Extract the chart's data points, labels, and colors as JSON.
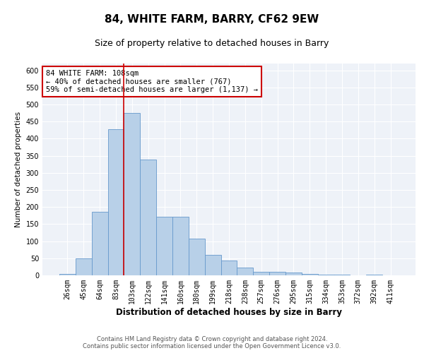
{
  "title": "84, WHITE FARM, BARRY, CF62 9EW",
  "subtitle": "Size of property relative to detached houses in Barry",
  "xlabel": "Distribution of detached houses by size in Barry",
  "ylabel": "Number of detached properties",
  "categories": [
    "26sqm",
    "45sqm",
    "64sqm",
    "83sqm",
    "103sqm",
    "122sqm",
    "141sqm",
    "160sqm",
    "180sqm",
    "199sqm",
    "218sqm",
    "238sqm",
    "257sqm",
    "276sqm",
    "295sqm",
    "315sqm",
    "334sqm",
    "353sqm",
    "372sqm",
    "392sqm",
    "411sqm"
  ],
  "values": [
    5,
    50,
    185,
    428,
    475,
    338,
    172,
    172,
    107,
    60,
    43,
    22,
    10,
    10,
    8,
    5,
    3,
    2,
    1,
    2,
    1
  ],
  "bar_color": "#b8d0e8",
  "bar_edge_color": "#6699cc",
  "highlight_bar_index": 4,
  "highlight_line_color": "#cc0000",
  "annotation_text": "84 WHITE FARM: 108sqm\n← 40% of detached houses are smaller (767)\n59% of semi-detached houses are larger (1,137) →",
  "annotation_box_color": "#ffffff",
  "annotation_box_edge": "#cc0000",
  "ylim": [
    0,
    620
  ],
  "yticks": [
    0,
    50,
    100,
    150,
    200,
    250,
    300,
    350,
    400,
    450,
    500,
    550,
    600
  ],
  "bg_color": "#eef2f8",
  "grid_color": "#ffffff",
  "footer_line1": "Contains HM Land Registry data © Crown copyright and database right 2024.",
  "footer_line2": "Contains public sector information licensed under the Open Government Licence v3.0.",
  "title_fontsize": 11,
  "subtitle_fontsize": 9,
  "xlabel_fontsize": 8.5,
  "ylabel_fontsize": 7.5,
  "tick_fontsize": 7,
  "annotation_fontsize": 7.5
}
